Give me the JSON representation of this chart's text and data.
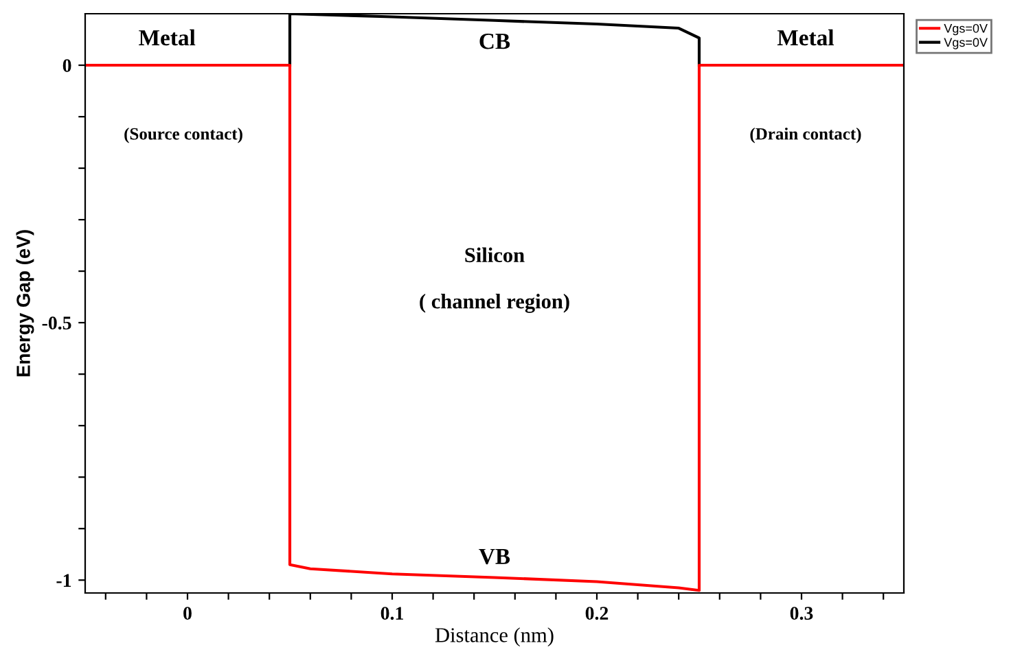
{
  "chart_data": {
    "type": "line",
    "xlabel": "Distance (nm)",
    "ylabel": "Energy Gap (eV)",
    "xlim": [
      -0.05,
      0.35
    ],
    "ylim": [
      -1.025,
      0.1
    ],
    "xticks": [
      {
        "value": -0.04,
        "label": null
      },
      {
        "value": -0.02,
        "label": null
      },
      0,
      {
        "value": 0.02,
        "label": null
      },
      {
        "value": 0.04,
        "label": null
      },
      {
        "value": 0.06,
        "label": null
      },
      {
        "value": 0.08,
        "label": null
      },
      0.1,
      {
        "value": 0.12,
        "label": null
      },
      {
        "value": 0.14,
        "label": null
      },
      {
        "value": 0.16,
        "label": null
      },
      {
        "value": 0.18,
        "label": null
      },
      0.2,
      {
        "value": 0.22,
        "label": null
      },
      {
        "value": 0.24,
        "label": null
      },
      {
        "value": 0.26,
        "label": null
      },
      {
        "value": 0.28,
        "label": null
      },
      0.3,
      {
        "value": 0.32,
        "label": null
      },
      {
        "value": 0.34,
        "label": null
      }
    ],
    "yticks": [
      -1,
      {
        "value": -0.9,
        "label": null
      },
      {
        "value": -0.8,
        "label": null
      },
      {
        "value": -0.7,
        "label": null
      },
      {
        "value": -0.6,
        "label": null
      },
      -0.5,
      {
        "value": -0.4,
        "label": null
      },
      {
        "value": -0.3,
        "label": null
      },
      {
        "value": -0.2,
        "label": null
      },
      {
        "value": -0.1,
        "label": null
      },
      0
    ],
    "series": [
      {
        "name": "Vgs=0V",
        "color": "#000000",
        "x": [
          0.05,
          0.05,
          0.1,
          0.15,
          0.2,
          0.24,
          0.25,
          0.25
        ],
        "values": [
          0,
          0.1,
          0.094,
          0.087,
          0.08,
          0.072,
          0.053,
          0
        ]
      },
      {
        "name": "Vgs=0V",
        "color": "#ff0000",
        "x": [
          -0.05,
          0.05,
          0.05,
          0.06,
          0.1,
          0.15,
          0.2,
          0.24,
          0.25,
          0.25,
          0.35
        ],
        "values": [
          0,
          0,
          -0.97,
          -0.978,
          -0.988,
          -0.995,
          -1.003,
          -1.015,
          -1.02,
          0,
          0
        ]
      }
    ],
    "annotations": [
      "Metal",
      "Metal",
      "(Source contact)",
      "(Drain contact)",
      "Silicon",
      "( channel region)",
      {
        "text": "CB",
        "x": 0.15,
        "y": 0.087
      },
      {
        "text": "VB",
        "x": 0.15,
        "y": -0.995
      }
    ],
    "legend": "top right",
    "grid": false,
    "marker": "none",
    "line_style": "solid"
  }
}
